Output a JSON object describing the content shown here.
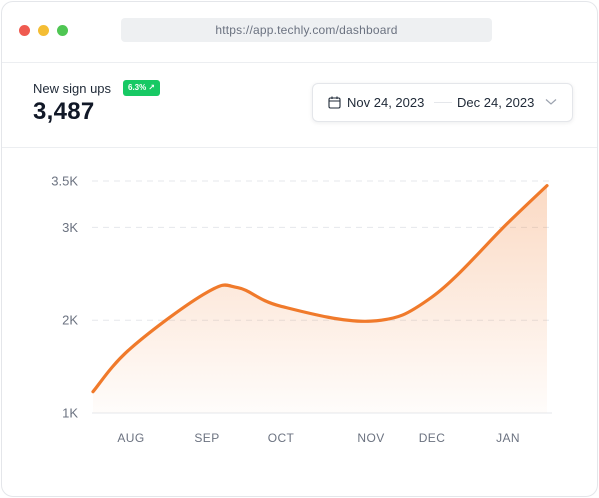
{
  "browser": {
    "url": "https://app.techly.com/dashboard"
  },
  "metric": {
    "label": "New sign ups",
    "change_badge": "6.3%",
    "change_icon": "arrow-up-right-icon",
    "value": "3,487",
    "badge_color": "#17c964"
  },
  "date_range": {
    "start": "Nov 24, 2023",
    "end": "Dec 24, 2023",
    "calendar_icon": "calendar-icon",
    "dropdown_icon": "chevron-down-icon"
  },
  "chart_data": {
    "type": "area",
    "title": "",
    "xlabel": "",
    "ylabel": "",
    "categories": [
      "AUG",
      "SEP",
      "OCT",
      "NOV",
      "DEC",
      "JAN"
    ],
    "y_ticks": [
      "1K",
      "2K",
      "3K",
      "3.5K"
    ],
    "y_tick_values": [
      1000,
      2000,
      3000,
      3500
    ],
    "ylim": [
      1000,
      3500
    ],
    "grid": true,
    "line_color": "#f07a2b",
    "series": [
      {
        "points": [
          {
            "x": "start",
            "y": 1230
          },
          {
            "x": "AUG",
            "y": 1700
          },
          {
            "x": "SEP",
            "y": 2300
          },
          {
            "x": "SEP-OCT",
            "y": 2350
          },
          {
            "x": "OCT",
            "y": 2150
          },
          {
            "x": "NOV",
            "y": 1990
          },
          {
            "x": "DEC",
            "y": 2250
          },
          {
            "x": "JAN",
            "y": 3050
          },
          {
            "x": "end",
            "y": 3450
          }
        ]
      }
    ]
  }
}
